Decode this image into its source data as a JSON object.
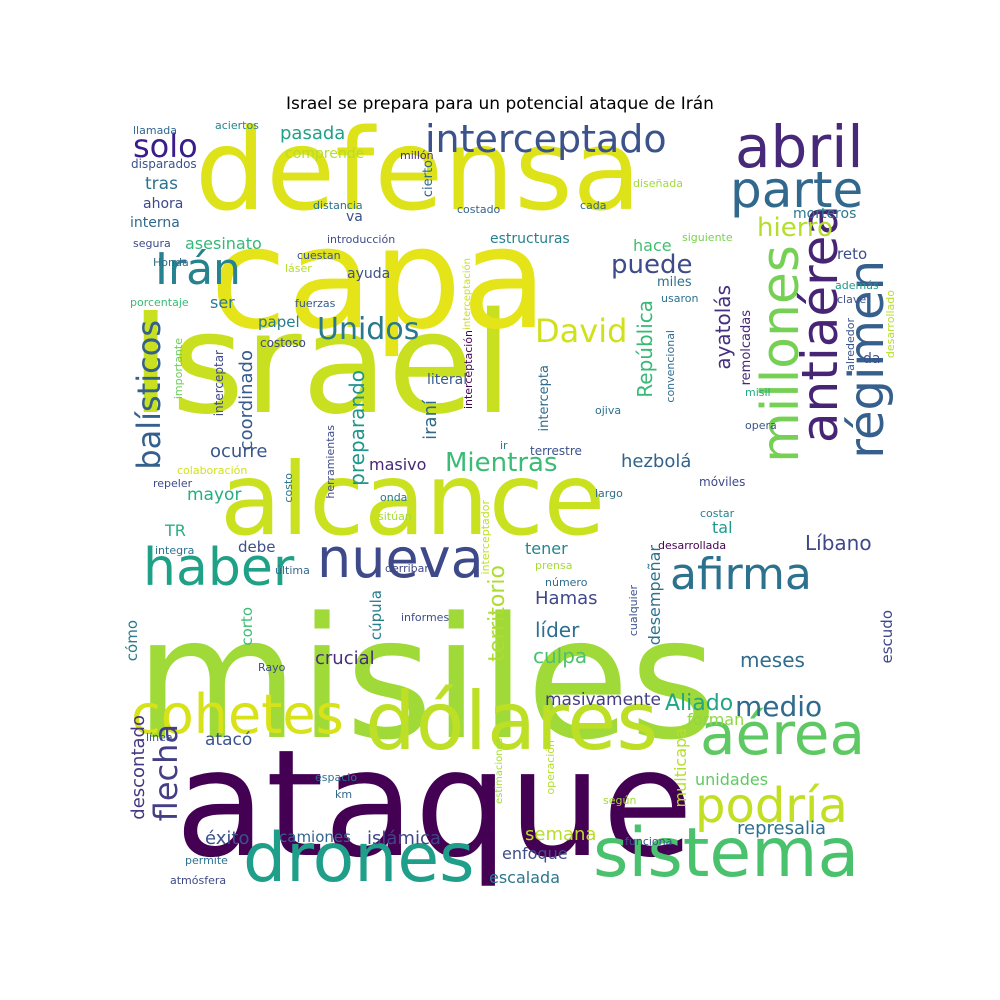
{
  "title": "Israel se prepara para un potencial ataque de Irán",
  "words": [
    {
      "text": "misiles",
      "color": "#a0da39"
    },
    {
      "text": "Israel",
      "color": "#c8e020"
    },
    {
      "text": "ataque",
      "color": "#440154"
    },
    {
      "text": "capa",
      "color": "#e5e419"
    },
    {
      "text": "defensa",
      "color": "#dde318"
    },
    {
      "text": "alcance",
      "color": "#cae11f"
    },
    {
      "text": "dólares",
      "color": "#bddf26"
    },
    {
      "text": "drones",
      "color": "#1f9e89"
    },
    {
      "text": "sistema",
      "color": "#4ac16d"
    },
    {
      "text": "cohetes",
      "color": "#d8e219"
    },
    {
      "text": "nueva",
      "color": "#3e4989"
    },
    {
      "text": "haber",
      "color": "#1fa188"
    },
    {
      "text": "aérea",
      "color": "#5ec962"
    },
    {
      "text": "podría",
      "color": "#c2df23"
    },
    {
      "text": "afirma",
      "color": "#2c728e"
    },
    {
      "text": "abril",
      "color": "#482878"
    },
    {
      "text": "parte",
      "color": "#31688e"
    },
    {
      "text": "millones",
      "color": "#75d054"
    },
    {
      "text": "antiaérea",
      "color": "#482475"
    },
    {
      "text": "régimen",
      "color": "#355f8d"
    },
    {
      "text": "interceptado",
      "color": "#3b528b"
    },
    {
      "text": "Irán",
      "color": "#26828e"
    },
    {
      "text": "balísticos",
      "color": "#355f8d"
    },
    {
      "text": "flecha",
      "color": "#433e85"
    },
    {
      "text": "David",
      "color": "#d0e11c"
    },
    {
      "text": "Unidos",
      "color": "#2a788e"
    },
    {
      "text": "solo",
      "color": "#3b1c8c"
    },
    {
      "text": "hierro",
      "color": "#b5de2b"
    },
    {
      "text": "puede",
      "color": "#3e4a89"
    },
    {
      "text": "Mientras",
      "color": "#3bbb75"
    },
    {
      "text": "medio",
      "color": "#2f6b8e"
    },
    {
      "text": "Aliado",
      "color": "#21a685"
    },
    {
      "text": "preparando",
      "color": "#1f968b"
    },
    {
      "text": "territorio",
      "color": "#addc30"
    },
    {
      "text": "República",
      "color": "#38b977"
    },
    {
      "text": "ayatolás",
      "color": "#46307e"
    },
    {
      "text": "Líbano",
      "color": "#3f4788"
    },
    {
      "text": "Hamas",
      "color": "#3f4889"
    },
    {
      "text": "líder",
      "color": "#2d708e"
    },
    {
      "text": "culpa",
      "color": "#4cc26c"
    },
    {
      "text": "crucial",
      "color": "#472d7b"
    },
    {
      "text": "meses",
      "color": "#2f6c8e"
    },
    {
      "text": "represalia",
      "color": "#2d708e"
    },
    {
      "text": "semana",
      "color": "#b8de29"
    },
    {
      "text": "islámica",
      "color": "#404688"
    },
    {
      "text": "éxito",
      "color": "#3b518b"
    },
    {
      "text": "enfoque",
      "color": "#3e4c8a"
    },
    {
      "text": "escalada",
      "color": "#2a768e"
    },
    {
      "text": "multicapa",
      "color": "#b5de2b"
    },
    {
      "text": "descontado",
      "color": "#453781"
    },
    {
      "text": "atacó",
      "color": "#3a548c"
    },
    {
      "text": "masivamente",
      "color": "#433d84"
    },
    {
      "text": "unidades",
      "color": "#5ec962"
    },
    {
      "text": "forman",
      "color": "#8fd744"
    },
    {
      "text": "camiones",
      "color": "#33638d"
    },
    {
      "text": "hezbolá",
      "color": "#33638d"
    },
    {
      "text": "masivo",
      "color": "#482677"
    },
    {
      "text": "iraní",
      "color": "#31688e"
    },
    {
      "text": "coordinado",
      "color": "#375b8d"
    },
    {
      "text": "ocurre",
      "color": "#39568c"
    },
    {
      "text": "mayor",
      "color": "#25ac82"
    },
    {
      "text": "TR",
      "color": "#29af7f"
    },
    {
      "text": "debe",
      "color": "#3d4e8a"
    },
    {
      "text": "tener",
      "color": "#24868e"
    },
    {
      "text": "tal",
      "color": "#1f9a8a"
    },
    {
      "text": "desempeñar",
      "color": "#2c718e"
    },
    {
      "text": "cúpula",
      "color": "#287d8e"
    },
    {
      "text": "corto",
      "color": "#3dbc74"
    },
    {
      "text": "cómo",
      "color": "#287c8e"
    },
    {
      "text": "escudo",
      "color": "#3f4889"
    },
    {
      "text": "ser",
      "color": "#2a788e"
    },
    {
      "text": "papel",
      "color": "#287c8e"
    },
    {
      "text": "asesinato",
      "color": "#35b779"
    },
    {
      "text": "pasada",
      "color": "#1fa187"
    },
    {
      "text": "tras",
      "color": "#2c728e"
    },
    {
      "text": "ahora",
      "color": "#3e4989"
    },
    {
      "text": "interna",
      "color": "#31688e"
    },
    {
      "text": "va",
      "color": "#3b528b"
    },
    {
      "text": "estructuras",
      "color": "#26828e"
    },
    {
      "text": "hace",
      "color": "#42be71"
    },
    {
      "text": "reto",
      "color": "#3d4d8a"
    },
    {
      "text": "da",
      "color": "#3c508b"
    },
    {
      "text": "morteros",
      "color": "#2a788e"
    },
    {
      "text": "ayuda",
      "color": "#3b528b"
    },
    {
      "text": "literal",
      "color": "#375b8d"
    },
    {
      "text": "intercepta",
      "color": "#2f6c8e"
    },
    {
      "text": "comprende",
      "color": "#b4de2c"
    },
    {
      "text": "llamada",
      "color": "#31688e"
    },
    {
      "text": "aciertos",
      "color": "#25848e"
    },
    {
      "text": "disparados",
      "color": "#3b528b"
    },
    {
      "text": "millón",
      "color": "#482878"
    },
    {
      "text": "diseñada",
      "color": "#a2da37"
    },
    {
      "text": "cada",
      "color": "#31688e"
    },
    {
      "text": "costado",
      "color": "#33638d"
    },
    {
      "text": "distancia",
      "color": "#2c728e"
    },
    {
      "text": "cierto",
      "color": "#31688e"
    },
    {
      "text": "introducción",
      "color": "#3e4c8a"
    },
    {
      "text": "interceptación",
      "color": "#c8e020"
    },
    {
      "text": "siguiente",
      "color": "#7ad151"
    },
    {
      "text": "segura",
      "color": "#3e4989"
    },
    {
      "text": "Honda",
      "color": "#2f6c8e"
    },
    {
      "text": "cuestan",
      "color": "#3a548c"
    },
    {
      "text": "láser",
      "color": "#b4de2c"
    },
    {
      "text": "porcentaje",
      "color": "#38b977"
    },
    {
      "text": "fuerzas",
      "color": "#375b8d"
    },
    {
      "text": "miles",
      "color": "#2d708e"
    },
    {
      "text": "usaron",
      "color": "#2c728e"
    },
    {
      "text": "clave",
      "color": "#3b528b"
    },
    {
      "text": "además",
      "color": "#1f998a"
    },
    {
      "text": "interceptación",
      "color": "#440154"
    },
    {
      "text": "costoso",
      "color": "#3e4c8a"
    },
    {
      "text": "importante",
      "color": "#6ccd5a"
    },
    {
      "text": "interceptar",
      "color": "#3e4989"
    },
    {
      "text": "convencional",
      "color": "#2f6c8e"
    },
    {
      "text": "remolcadas",
      "color": "#482878"
    },
    {
      "text": "alrededor",
      "color": "#3b528b"
    },
    {
      "text": "desarrollado",
      "color": "#b8de29"
    },
    {
      "text": "misil",
      "color": "#25ab82"
    },
    {
      "text": "opera",
      "color": "#3b528b"
    },
    {
      "text": "ojiva",
      "color": "#2c728e"
    },
    {
      "text": "herramientas",
      "color": "#3e4c8a"
    },
    {
      "text": "ir",
      "color": "#2a788e"
    },
    {
      "text": "terrestre",
      "color": "#3b528b"
    },
    {
      "text": "colaboración",
      "color": "#d2e21b"
    },
    {
      "text": "repeler",
      "color": "#3e4989"
    },
    {
      "text": "costo",
      "color": "#2c728e"
    },
    {
      "text": "onda",
      "color": "#2a788e"
    },
    {
      "text": "sitúan",
      "color": "#a5db36"
    },
    {
      "text": "largo",
      "color": "#2f6c8e"
    },
    {
      "text": "móviles",
      "color": "#3e4989"
    },
    {
      "text": "costar",
      "color": "#26828e"
    },
    {
      "text": "interceptador",
      "color": "#bddf26"
    },
    {
      "text": "desarrollada",
      "color": "#440154"
    },
    {
      "text": "integra",
      "color": "#2c728e"
    },
    {
      "text": "última",
      "color": "#31688e"
    },
    {
      "text": "derribar",
      "color": "#3e4989"
    },
    {
      "text": "prensa",
      "color": "#a5db36"
    },
    {
      "text": "número",
      "color": "#2f6c8e"
    },
    {
      "text": "cualquier",
      "color": "#3b528b"
    },
    {
      "text": "Rayo",
      "color": "#3e4989"
    },
    {
      "text": "informes",
      "color": "#3e4c8a"
    },
    {
      "text": "línea",
      "color": "#3b528b"
    },
    {
      "text": "operación",
      "color": "#b4de2c"
    },
    {
      "text": "espacio",
      "color": "#2c728e"
    },
    {
      "text": "km",
      "color": "#31688e"
    },
    {
      "text": "estimaciones",
      "color": "#a5db36"
    },
    {
      "text": "según",
      "color": "#a5db36"
    },
    {
      "text": "permite",
      "color": "#2c728e"
    },
    {
      "text": "atmósfera",
      "color": "#3e4989"
    },
    {
      "text": "funciona",
      "color": "#3b528b"
    }
  ]
}
